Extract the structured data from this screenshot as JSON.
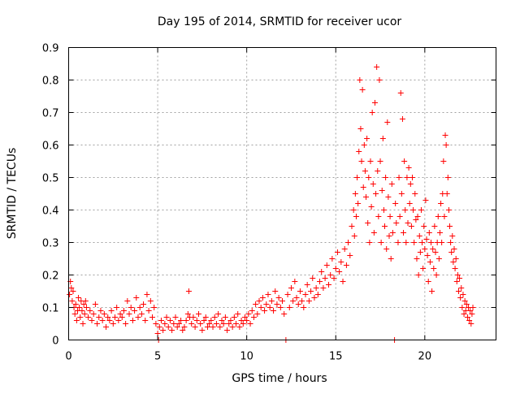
{
  "chart_data": {
    "type": "scatter",
    "title": "Day 195 of 2014, SRMTID for receiver ucor",
    "xlabel": "GPS time / hours",
    "ylabel": "SRMTID / TECUs",
    "xlim": [
      0,
      24
    ],
    "ylim": [
      0,
      0.9
    ],
    "xticks": [
      "0",
      "5",
      "10",
      "15",
      "20"
    ],
    "yticks": [
      "0",
      "0.1",
      "0.2",
      "0.3",
      "0.4",
      "0.5",
      "0.6",
      "0.7",
      "0.8",
      "0.9"
    ],
    "grid": true,
    "marker": "+",
    "color": "#ff0000",
    "series": [
      {
        "name": "SRMTID",
        "points": [
          [
            0.05,
            0.14
          ],
          [
            0.1,
            0.18
          ],
          [
            0.15,
            0.16
          ],
          [
            0.2,
            0.12
          ],
          [
            0.25,
            0.15
          ],
          [
            0.3,
            0.1
          ],
          [
            0.35,
            0.08
          ],
          [
            0.4,
            0.11
          ],
          [
            0.45,
            0.06
          ],
          [
            0.5,
            0.09
          ],
          [
            0.55,
            0.13
          ],
          [
            0.6,
            0.1
          ],
          [
            0.65,
            0.07
          ],
          [
            0.7,
            0.12
          ],
          [
            0.75,
            0.09
          ],
          [
            0.8,
            0.05
          ],
          [
            0.85,
            0.11
          ],
          [
            0.9,
            0.08
          ],
          [
            0.95,
            0.12
          ],
          [
            1.0,
            0.1
          ],
          [
            1.1,
            0.07
          ],
          [
            1.2,
            0.09
          ],
          [
            1.3,
            0.06
          ],
          [
            1.4,
            0.08
          ],
          [
            1.5,
            0.11
          ],
          [
            1.6,
            0.05
          ],
          [
            1.7,
            0.07
          ],
          [
            1.8,
            0.09
          ],
          [
            1.9,
            0.06
          ],
          [
            2.0,
            0.08
          ],
          [
            2.1,
            0.04
          ],
          [
            2.2,
            0.07
          ],
          [
            2.3,
            0.06
          ],
          [
            2.4,
            0.09
          ],
          [
            2.5,
            0.05
          ],
          [
            2.6,
            0.07
          ],
          [
            2.7,
            0.1
          ],
          [
            2.8,
            0.06
          ],
          [
            2.9,
            0.08
          ],
          [
            3.0,
            0.07
          ],
          [
            3.1,
            0.09
          ],
          [
            3.2,
            0.05
          ],
          [
            3.3,
            0.12
          ],
          [
            3.4,
            0.08
          ],
          [
            3.5,
            0.1
          ],
          [
            3.6,
            0.06
          ],
          [
            3.7,
            0.09
          ],
          [
            3.8,
            0.13
          ],
          [
            3.9,
            0.07
          ],
          [
            4.0,
            0.1
          ],
          [
            4.1,
            0.08
          ],
          [
            4.2,
            0.11
          ],
          [
            4.3,
            0.06
          ],
          [
            4.4,
            0.14
          ],
          [
            4.5,
            0.09
          ],
          [
            4.6,
            0.12
          ],
          [
            4.7,
            0.07
          ],
          [
            4.8,
            0.1
          ],
          [
            4.9,
            0.05
          ],
          [
            5.0,
            0.02
          ],
          [
            5.05,
            0.0
          ],
          [
            5.1,
            0.04
          ],
          [
            5.2,
            0.06
          ],
          [
            5.3,
            0.03
          ],
          [
            5.4,
            0.05
          ],
          [
            5.5,
            0.07
          ],
          [
            5.6,
            0.04
          ],
          [
            5.7,
            0.06
          ],
          [
            5.8,
            0.03
          ],
          [
            5.9,
            0.05
          ],
          [
            6.0,
            0.07
          ],
          [
            6.1,
            0.04
          ],
          [
            6.2,
            0.05
          ],
          [
            6.3,
            0.06
          ],
          [
            6.4,
            0.03
          ],
          [
            6.5,
            0.04
          ],
          [
            6.6,
            0.06
          ],
          [
            6.7,
            0.08
          ],
          [
            6.75,
            0.15
          ],
          [
            6.8,
            0.07
          ],
          [
            6.9,
            0.05
          ],
          [
            7.0,
            0.07
          ],
          [
            7.1,
            0.04
          ],
          [
            7.2,
            0.06
          ],
          [
            7.3,
            0.08
          ],
          [
            7.4,
            0.05
          ],
          [
            7.5,
            0.03
          ],
          [
            7.6,
            0.06
          ],
          [
            7.7,
            0.07
          ],
          [
            7.8,
            0.04
          ],
          [
            7.9,
            0.05
          ],
          [
            8.0,
            0.06
          ],
          [
            8.1,
            0.04
          ],
          [
            8.2,
            0.07
          ],
          [
            8.3,
            0.05
          ],
          [
            8.4,
            0.08
          ],
          [
            8.5,
            0.04
          ],
          [
            8.6,
            0.06
          ],
          [
            8.7,
            0.05
          ],
          [
            8.8,
            0.07
          ],
          [
            8.9,
            0.03
          ],
          [
            9.0,
            0.05
          ],
          [
            9.1,
            0.06
          ],
          [
            9.2,
            0.04
          ],
          [
            9.3,
            0.07
          ],
          [
            9.4,
            0.05
          ],
          [
            9.5,
            0.08
          ],
          [
            9.6,
            0.04
          ],
          [
            9.7,
            0.06
          ],
          [
            9.8,
            0.05
          ],
          [
            9.9,
            0.07
          ],
          [
            10.0,
            0.06
          ],
          [
            10.1,
            0.08
          ],
          [
            10.2,
            0.05
          ],
          [
            10.3,
            0.09
          ],
          [
            10.4,
            0.07
          ],
          [
            10.5,
            0.11
          ],
          [
            10.6,
            0.08
          ],
          [
            10.7,
            0.12
          ],
          [
            10.8,
            0.1
          ],
          [
            10.9,
            0.13
          ],
          [
            11.0,
            0.09
          ],
          [
            11.1,
            0.11
          ],
          [
            11.2,
            0.14
          ],
          [
            11.3,
            0.1
          ],
          [
            11.4,
            0.12
          ],
          [
            11.5,
            0.09
          ],
          [
            11.6,
            0.15
          ],
          [
            11.7,
            0.11
          ],
          [
            11.8,
            0.13
          ],
          [
            11.9,
            0.1
          ],
          [
            12.0,
            0.12
          ],
          [
            12.1,
            0.08
          ],
          [
            12.2,
            0.0
          ],
          [
            12.3,
            0.14
          ],
          [
            12.4,
            0.1
          ],
          [
            12.5,
            0.16
          ],
          [
            12.6,
            0.12
          ],
          [
            12.7,
            0.18
          ],
          [
            12.8,
            0.13
          ],
          [
            12.9,
            0.11
          ],
          [
            13.0,
            0.15
          ],
          [
            13.1,
            0.12
          ],
          [
            13.2,
            0.1
          ],
          [
            13.3,
            0.14
          ],
          [
            13.4,
            0.17
          ],
          [
            13.5,
            0.12
          ],
          [
            13.6,
            0.15
          ],
          [
            13.7,
            0.19
          ],
          [
            13.8,
            0.13
          ],
          [
            13.9,
            0.16
          ],
          [
            14.0,
            0.14
          ],
          [
            14.1,
            0.18
          ],
          [
            14.2,
            0.21
          ],
          [
            14.3,
            0.16
          ],
          [
            14.4,
            0.19
          ],
          [
            14.5,
            0.23
          ],
          [
            14.6,
            0.17
          ],
          [
            14.7,
            0.2
          ],
          [
            14.8,
            0.25
          ],
          [
            14.9,
            0.19
          ],
          [
            15.0,
            0.22
          ],
          [
            15.1,
            0.27
          ],
          [
            15.2,
            0.21
          ],
          [
            15.3,
            0.24
          ],
          [
            15.4,
            0.18
          ],
          [
            15.5,
            0.28
          ],
          [
            15.6,
            0.23
          ],
          [
            15.7,
            0.3
          ],
          [
            15.8,
            0.26
          ],
          [
            15.9,
            0.35
          ],
          [
            16.0,
            0.4
          ],
          [
            16.05,
            0.32
          ],
          [
            16.1,
            0.45
          ],
          [
            16.15,
            0.38
          ],
          [
            16.2,
            0.5
          ],
          [
            16.25,
            0.42
          ],
          [
            16.3,
            0.58
          ],
          [
            16.35,
            0.8
          ],
          [
            16.4,
            0.65
          ],
          [
            16.45,
            0.55
          ],
          [
            16.5,
            0.77
          ],
          [
            16.55,
            0.47
          ],
          [
            16.6,
            0.6
          ],
          [
            16.65,
            0.52
          ],
          [
            16.7,
            0.44
          ],
          [
            16.75,
            0.62
          ],
          [
            16.8,
            0.36
          ],
          [
            16.85,
            0.5
          ],
          [
            16.9,
            0.3
          ],
          [
            16.95,
            0.55
          ],
          [
            17.0,
            0.41
          ],
          [
            17.05,
            0.7
          ],
          [
            17.1,
            0.48
          ],
          [
            17.15,
            0.33
          ],
          [
            17.2,
            0.73
          ],
          [
            17.25,
            0.45
          ],
          [
            17.3,
            0.84
          ],
          [
            17.35,
            0.52
          ],
          [
            17.4,
            0.38
          ],
          [
            17.45,
            0.8
          ],
          [
            17.5,
            0.55
          ],
          [
            17.55,
            0.3
          ],
          [
            17.6,
            0.46
          ],
          [
            17.65,
            0.62
          ],
          [
            17.7,
            0.4
          ],
          [
            17.75,
            0.35
          ],
          [
            17.8,
            0.5
          ],
          [
            17.85,
            0.28
          ],
          [
            17.9,
            0.67
          ],
          [
            17.95,
            0.44
          ],
          [
            18.0,
            0.32
          ],
          [
            18.05,
            0.38
          ],
          [
            18.1,
            0.25
          ],
          [
            18.15,
            0.48
          ],
          [
            18.2,
            0.33
          ],
          [
            18.3,
            0.0
          ],
          [
            18.35,
            0.42
          ],
          [
            18.4,
            0.36
          ],
          [
            18.5,
            0.3
          ],
          [
            18.55,
            0.5
          ],
          [
            18.6,
            0.38
          ],
          [
            18.65,
            0.76
          ],
          [
            18.7,
            0.45
          ],
          [
            18.75,
            0.68
          ],
          [
            18.8,
            0.33
          ],
          [
            18.85,
            0.55
          ],
          [
            18.9,
            0.4
          ],
          [
            18.95,
            0.3
          ],
          [
            19.0,
            0.5
          ],
          [
            19.05,
            0.36
          ],
          [
            19.1,
            0.53
          ],
          [
            19.15,
            0.42
          ],
          [
            19.2,
            0.48
          ],
          [
            19.25,
            0.35
          ],
          [
            19.3,
            0.5
          ],
          [
            19.35,
            0.4
          ],
          [
            19.4,
            0.3
          ],
          [
            19.45,
            0.45
          ],
          [
            19.5,
            0.37
          ],
          [
            19.55,
            0.25
          ],
          [
            19.6,
            0.38
          ],
          [
            19.65,
            0.2
          ],
          [
            19.7,
            0.32
          ],
          [
            19.75,
            0.27
          ],
          [
            19.8,
            0.4
          ],
          [
            19.85,
            0.3
          ],
          [
            19.9,
            0.22
          ],
          [
            19.95,
            0.35
          ],
          [
            20.0,
            0.28
          ],
          [
            20.05,
            0.43
          ],
          [
            20.1,
            0.31
          ],
          [
            20.15,
            0.26
          ],
          [
            20.2,
            0.18
          ],
          [
            20.25,
            0.33
          ],
          [
            20.3,
            0.24
          ],
          [
            20.35,
            0.3
          ],
          [
            20.4,
            0.15
          ],
          [
            20.45,
            0.28
          ],
          [
            20.5,
            0.22
          ],
          [
            20.55,
            0.35
          ],
          [
            20.6,
            0.27
          ],
          [
            20.65,
            0.2
          ],
          [
            20.7,
            0.3
          ],
          [
            20.75,
            0.38
          ],
          [
            20.8,
            0.25
          ],
          [
            20.85,
            0.33
          ],
          [
            20.9,
            0.42
          ],
          [
            20.95,
            0.3
          ],
          [
            21.0,
            0.45
          ],
          [
            21.05,
            0.55
          ],
          [
            21.1,
            0.38
          ],
          [
            21.15,
            0.63
          ],
          [
            21.2,
            0.6
          ],
          [
            21.25,
            0.45
          ],
          [
            21.3,
            0.5
          ],
          [
            21.35,
            0.4
          ],
          [
            21.4,
            0.35
          ],
          [
            21.45,
            0.3
          ],
          [
            21.5,
            0.27
          ],
          [
            21.55,
            0.32
          ],
          [
            21.6,
            0.24
          ],
          [
            21.65,
            0.28
          ],
          [
            21.7,
            0.22
          ],
          [
            21.75,
            0.25
          ],
          [
            21.8,
            0.18
          ],
          [
            21.85,
            0.2
          ],
          [
            21.9,
            0.15
          ],
          [
            21.95,
            0.19
          ],
          [
            22.0,
            0.13
          ],
          [
            22.05,
            0.16
          ],
          [
            22.1,
            0.1
          ],
          [
            22.15,
            0.14
          ],
          [
            22.2,
            0.08
          ],
          [
            22.25,
            0.12
          ],
          [
            22.3,
            0.09
          ],
          [
            22.35,
            0.11
          ],
          [
            22.4,
            0.07
          ],
          [
            22.45,
            0.1
          ],
          [
            22.5,
            0.06
          ],
          [
            22.55,
            0.09
          ],
          [
            22.6,
            0.05
          ],
          [
            22.65,
            0.08
          ],
          [
            22.7,
            0.1
          ]
        ]
      }
    ]
  }
}
